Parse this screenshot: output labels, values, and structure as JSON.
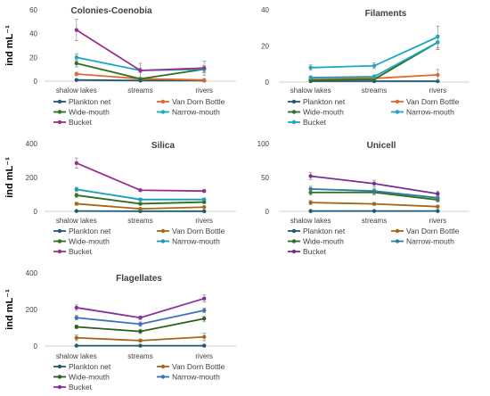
{
  "colors": {
    "Plankton net": "#1f5a70",
    "Van Dorn Bottle": "#e06a2e",
    "Wide-mouth": "#2e6e1e",
    "Narrow-mouth": "#1aa7c4",
    "Bucket": "#9a2f8e"
  },
  "chart_data": [
    {
      "type": "line",
      "title": "Colonies-Coenobia",
      "ylabel": "ind mL⁻¹",
      "ylim": [
        0,
        60
      ],
      "yticks": [
        0,
        20,
        40,
        60
      ],
      "categories": [
        "shalow lakes",
        "streams",
        "rivers"
      ],
      "palette": {
        "Plankton net": "#1f5a70",
        "Van Dorn Bottle": "#e06a2e",
        "Wide-mouth": "#2e6e1e",
        "Narrow-mouth": "#1aa7c4",
        "Bucket": "#9a2f8e"
      },
      "series": [
        {
          "name": "Plankton net",
          "values": [
            1,
            0.5,
            0.5
          ],
          "err": [
            0.3,
            0.2,
            0.2
          ]
        },
        {
          "name": "Van Dorn Bottle",
          "values": [
            6,
            2,
            1
          ],
          "err": [
            1.5,
            0.5,
            0.5
          ]
        },
        {
          "name": "Wide-mouth",
          "values": [
            15,
            2,
            10
          ],
          "err": [
            3,
            1,
            2
          ]
        },
        {
          "name": "Narrow-mouth",
          "values": [
            20,
            9,
            10
          ],
          "err": [
            3,
            2,
            3
          ]
        },
        {
          "name": "Bucket",
          "values": [
            43,
            9,
            11
          ],
          "err": [
            9,
            6,
            6
          ]
        }
      ]
    },
    {
      "type": "line",
      "title": "Filaments",
      "ylabel": "",
      "ylim": [
        0,
        40
      ],
      "yticks": [
        0,
        20,
        40
      ],
      "categories": [
        "shalow lakes",
        "streams",
        "rivers"
      ],
      "palette": {
        "Plankton net": "#1f5a70",
        "Van Dorn Bottle": "#e06a2e",
        "Wide-mouth": "#2e6e1e",
        "Narrow-mouth": "#1aa7c4",
        "Bucket": "#1aa7c4"
      },
      "series": [
        {
          "name": "Plankton net",
          "values": [
            0.5,
            0.5,
            0.5
          ],
          "err": [
            0.2,
            0.2,
            0.2
          ]
        },
        {
          "name": "Van Dorn Bottle",
          "values": [
            2,
            2,
            4
          ],
          "err": [
            0.5,
            0.5,
            3
          ]
        },
        {
          "name": "Wide-mouth",
          "values": [
            1,
            1.5,
            22
          ],
          "err": [
            0.5,
            0.5,
            4
          ]
        },
        {
          "name": "Narrow-mouth",
          "values": [
            2.5,
            3,
            22
          ],
          "err": [
            1,
            1,
            4
          ]
        },
        {
          "name": "Bucket",
          "values": [
            8,
            9,
            25
          ],
          "err": [
            1.5,
            1.5,
            6
          ]
        }
      ]
    },
    {
      "type": "line",
      "title": "Silica",
      "ylabel": "ind mL⁻¹",
      "ylim": [
        0,
        400
      ],
      "yticks": [
        0,
        200,
        400
      ],
      "categories": [
        "shalow lakes",
        "streams",
        "rivers"
      ],
      "palette": {
        "Plankton net": "#1f5a70",
        "Van Dorn Bottle": "#9e6a12",
        "Wide-mouth": "#2e6e1e",
        "Narrow-mouth": "#1a9cb8",
        "Bucket": "#9a2f8e"
      },
      "series": [
        {
          "name": "Plankton net",
          "values": [
            2,
            1,
            1
          ],
          "err": [
            1,
            0.5,
            0.5
          ]
        },
        {
          "name": "Van Dorn Bottle",
          "values": [
            45,
            15,
            25
          ],
          "err": [
            8,
            5,
            5
          ]
        },
        {
          "name": "Wide-mouth",
          "values": [
            95,
            45,
            55
          ],
          "err": [
            12,
            8,
            8
          ]
        },
        {
          "name": "Narrow-mouth",
          "values": [
            130,
            70,
            70
          ],
          "err": [
            12,
            8,
            8
          ]
        },
        {
          "name": "Bucket",
          "values": [
            285,
            125,
            120
          ],
          "err": [
            30,
            8,
            8
          ]
        }
      ]
    },
    {
      "type": "line",
      "title": "Unicell",
      "ylabel": "",
      "ylim": [
        0,
        100
      ],
      "yticks": [
        0,
        50,
        100
      ],
      "categories": [
        "shalow lakes",
        "streams",
        "rivers"
      ],
      "palette": {
        "Plankton net": "#1f5a70",
        "Van Dorn Bottle": "#9e6a12",
        "Wide-mouth": "#2e6e1e",
        "Narrow-mouth": "#2a7ea0",
        "Bucket": "#7a2f8e"
      },
      "series": [
        {
          "name": "Plankton net",
          "values": [
            0.5,
            0.5,
            0.5
          ],
          "err": [
            0.2,
            0.2,
            0.2
          ]
        },
        {
          "name": "Van Dorn Bottle",
          "values": [
            13,
            11,
            7
          ],
          "err": [
            3,
            2,
            2
          ]
        },
        {
          "name": "Wide-mouth",
          "values": [
            28,
            28,
            17
          ],
          "err": [
            4,
            4,
            3
          ]
        },
        {
          "name": "Narrow-mouth",
          "values": [
            33,
            30,
            20
          ],
          "err": [
            4,
            4,
            3
          ]
        },
        {
          "name": "Bucket",
          "values": [
            52,
            41,
            26
          ],
          "err": [
            5,
            5,
            4
          ]
        }
      ]
    },
    {
      "type": "line",
      "title": "Flagellates",
      "ylabel": "ind mL⁻¹",
      "ylim": [
        0,
        400
      ],
      "yticks": [
        0,
        200,
        400
      ],
      "categories": [
        "shalow lakes",
        "streams",
        "rivers"
      ],
      "palette": {
        "Plankton net": "#1f5a70",
        "Van Dorn Bottle": "#a8651a",
        "Wide-mouth": "#2e5e1e",
        "Narrow-mouth": "#3a72c0",
        "Bucket": "#8a2f9e"
      },
      "series": [
        {
          "name": "Plankton net",
          "values": [
            2,
            2,
            2
          ],
          "err": [
            1,
            1,
            1
          ]
        },
        {
          "name": "Van Dorn Bottle",
          "values": [
            45,
            30,
            50
          ],
          "err": [
            15,
            8,
            20
          ]
        },
        {
          "name": "Wide-mouth",
          "values": [
            105,
            80,
            150
          ],
          "err": [
            10,
            12,
            15
          ]
        },
        {
          "name": "Narrow-mouth",
          "values": [
            155,
            120,
            195
          ],
          "err": [
            12,
            12,
            12
          ]
        },
        {
          "name": "Bucket",
          "values": [
            210,
            155,
            260
          ],
          "err": [
            15,
            10,
            20
          ]
        }
      ]
    }
  ]
}
